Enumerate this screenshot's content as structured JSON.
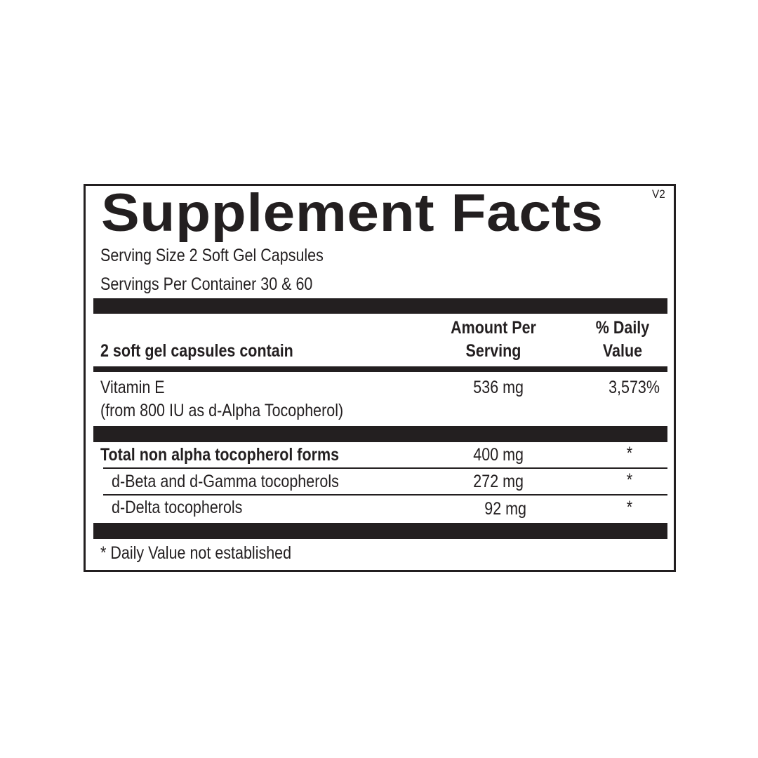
{
  "label": {
    "title": "Supplement Facts",
    "version": "V2",
    "serving_size": "Serving Size 2 Soft Gel Capsules",
    "servings_per_container": "Servings Per Container 30 & 60",
    "header": {
      "contains": "2 soft gel capsules contain",
      "amount_line1": "Amount Per",
      "amount_line2": "Serving",
      "dv_line1": "% Daily",
      "dv_line2": "Value"
    },
    "rows": [
      {
        "name": "Vitamin E",
        "sub": "(from 800 IU as d-Alpha Tocopherol)",
        "amount": "536 mg",
        "dv": "3,573%"
      },
      {
        "name": "Total non alpha tocopherol forms",
        "amount": "400 mg",
        "dv": "*"
      },
      {
        "name": "d-Beta and d-Gamma tocopherols",
        "amount": "272 mg",
        "dv": "*"
      },
      {
        "name": "d-Delta tocopherols",
        "amount": "92 mg",
        "dv": "*"
      }
    ],
    "footnote": "* Daily Value not established"
  }
}
